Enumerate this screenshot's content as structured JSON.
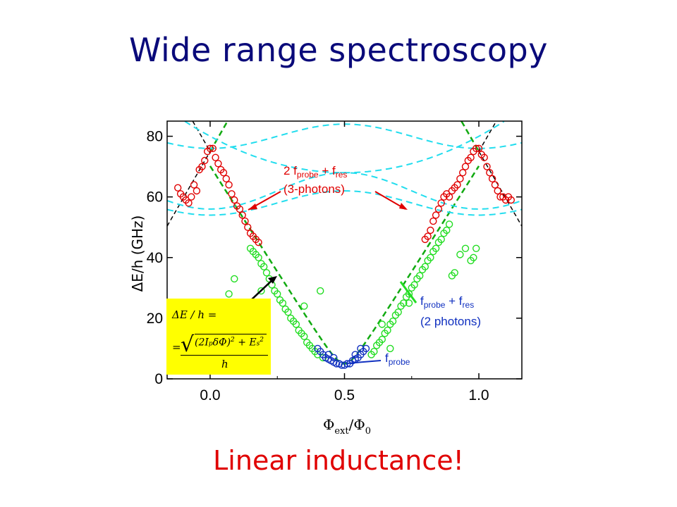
{
  "slide": {
    "title": "Wide range spectroscopy",
    "bottom_note": "Linear inductance!"
  },
  "colors": {
    "title": "#0a0a7a",
    "note": "#e00000",
    "red_points": "#e00000",
    "green_points": "#22dd22",
    "blue_points": "#1030c0",
    "green_dashed": "#11aa11",
    "cyan_dashed": "#22ddee",
    "black_dashed": "#000000",
    "formula_bg": "#ffff00"
  },
  "chart_data": {
    "type": "scatter",
    "xlabel": "Φext/Φ0",
    "ylabel": "ΔE/h (GHz)",
    "xlim": [
      -0.16,
      1.16
    ],
    "ylim": [
      0,
      85
    ],
    "xticks": [
      "0.0",
      "0.5",
      "1.0"
    ],
    "yticks": [
      "0",
      "20",
      "40",
      "60",
      "80"
    ],
    "annotations": {
      "three_photon": {
        "line1": "2 f",
        "sub1": "probe",
        "mid": " + f",
        "sub2": "res",
        "line2": "(3-photons)"
      },
      "two_photon": {
        "line1": "f",
        "sub1": "probe",
        "mid": " + f",
        "sub2": "res",
        "line2": "(2 photons)"
      },
      "one_photon": {
        "line1": "f",
        "sub1": "probe"
      }
    },
    "formula": {
      "line1": "ΔE / h =",
      "eq": "=",
      "numerator": "(2I",
      "sub_p": "p",
      "delta_phi": "δΦ)",
      "sup2a": "2",
      "plus": " + E",
      "sub_s": "s",
      "sup2b": "2",
      "denominator": "h"
    },
    "series": [
      {
        "color_key": "red_points",
        "points": [
          [
            -0.12,
            63
          ],
          [
            -0.11,
            61
          ],
          [
            -0.1,
            60
          ],
          [
            -0.09,
            59
          ],
          [
            -0.08,
            58
          ],
          [
            -0.07,
            60
          ],
          [
            -0.06,
            64
          ],
          [
            -0.05,
            62
          ],
          [
            -0.04,
            69
          ],
          [
            -0.03,
            70
          ],
          [
            -0.02,
            72
          ],
          [
            -0.01,
            75
          ],
          [
            0.0,
            76
          ],
          [
            0.01,
            76
          ],
          [
            0.02,
            73
          ],
          [
            0.03,
            71
          ],
          [
            0.04,
            69
          ],
          [
            0.05,
            68
          ],
          [
            0.06,
            66
          ],
          [
            0.07,
            64
          ],
          [
            0.08,
            61
          ],
          [
            0.09,
            59
          ],
          [
            0.1,
            57
          ],
          [
            0.11,
            56
          ],
          [
            0.12,
            54
          ],
          [
            0.13,
            52
          ],
          [
            0.14,
            50
          ],
          [
            0.15,
            48
          ],
          [
            0.16,
            47
          ],
          [
            0.17,
            46
          ],
          [
            0.18,
            45
          ],
          [
            0.8,
            46
          ],
          [
            0.81,
            47
          ],
          [
            0.82,
            49
          ],
          [
            0.83,
            52
          ],
          [
            0.84,
            54
          ],
          [
            0.85,
            56
          ],
          [
            0.86,
            58
          ],
          [
            0.87,
            60
          ],
          [
            0.88,
            61
          ],
          [
            0.89,
            60
          ],
          [
            0.9,
            62
          ],
          [
            0.91,
            63
          ],
          [
            0.92,
            64
          ],
          [
            0.93,
            66
          ],
          [
            0.94,
            68
          ],
          [
            0.95,
            70
          ],
          [
            0.96,
            72
          ],
          [
            0.97,
            73
          ],
          [
            0.98,
            75
          ],
          [
            0.99,
            76
          ],
          [
            1.0,
            76
          ],
          [
            1.01,
            74
          ],
          [
            1.02,
            73
          ],
          [
            1.03,
            70
          ],
          [
            1.04,
            68
          ],
          [
            1.05,
            66
          ],
          [
            1.06,
            64
          ],
          [
            1.07,
            62
          ],
          [
            1.08,
            60
          ],
          [
            1.09,
            60
          ],
          [
            1.1,
            59
          ],
          [
            1.11,
            60
          ],
          [
            1.12,
            59
          ]
        ]
      },
      {
        "color_key": "green_points",
        "points": [
          [
            0.15,
            43
          ],
          [
            0.16,
            42
          ],
          [
            0.17,
            41
          ],
          [
            0.18,
            40
          ],
          [
            0.19,
            38
          ],
          [
            0.2,
            37
          ],
          [
            0.21,
            35
          ],
          [
            0.22,
            33
          ],
          [
            0.23,
            31
          ],
          [
            0.24,
            29
          ],
          [
            0.25,
            28
          ],
          [
            0.26,
            26
          ],
          [
            0.27,
            25
          ],
          [
            0.28,
            23
          ],
          [
            0.29,
            22
          ],
          [
            0.3,
            20
          ],
          [
            0.31,
            19
          ],
          [
            0.32,
            18
          ],
          [
            0.33,
            16
          ],
          [
            0.34,
            15
          ],
          [
            0.35,
            14
          ],
          [
            0.36,
            12
          ],
          [
            0.37,
            11
          ],
          [
            0.38,
            10
          ],
          [
            0.39,
            9
          ],
          [
            0.4,
            8
          ],
          [
            0.42,
            7
          ],
          [
            0.6,
            8
          ],
          [
            0.61,
            9
          ],
          [
            0.62,
            11
          ],
          [
            0.63,
            12
          ],
          [
            0.64,
            13
          ],
          [
            0.65,
            15
          ],
          [
            0.66,
            16
          ],
          [
            0.67,
            18
          ],
          [
            0.68,
            19
          ],
          [
            0.69,
            21
          ],
          [
            0.7,
            22
          ],
          [
            0.71,
            24
          ],
          [
            0.72,
            25
          ],
          [
            0.73,
            27
          ],
          [
            0.74,
            28
          ],
          [
            0.75,
            30
          ],
          [
            0.76,
            31
          ],
          [
            0.77,
            33
          ],
          [
            0.78,
            34
          ],
          [
            0.79,
            36
          ],
          [
            0.8,
            37
          ],
          [
            0.81,
            39
          ],
          [
            0.82,
            40
          ],
          [
            0.83,
            42
          ],
          [
            0.84,
            43
          ],
          [
            0.85,
            45
          ],
          [
            0.86,
            46
          ],
          [
            0.87,
            48
          ],
          [
            0.88,
            49
          ],
          [
            0.89,
            51
          ],
          [
            0.07,
            28
          ],
          [
            0.09,
            33
          ],
          [
            0.14,
            24
          ],
          [
            0.19,
            29
          ],
          [
            0.41,
            29
          ],
          [
            0.35,
            24
          ],
          [
            0.64,
            18
          ],
          [
            0.67,
            10
          ],
          [
            0.9,
            34
          ],
          [
            0.93,
            41
          ],
          [
            0.95,
            43
          ],
          [
            0.97,
            39
          ],
          [
            0.98,
            40
          ],
          [
            0.99,
            43
          ],
          [
            0.91,
            35
          ],
          [
            0.74,
            25
          ]
        ]
      },
      {
        "color_key": "blue_points",
        "points": [
          [
            0.4,
            10
          ],
          [
            0.41,
            9
          ],
          [
            0.42,
            8
          ],
          [
            0.43,
            7
          ],
          [
            0.44,
            6.5
          ],
          [
            0.45,
            6
          ],
          [
            0.46,
            5.5
          ],
          [
            0.47,
            5
          ],
          [
            0.48,
            5
          ],
          [
            0.49,
            4.5
          ],
          [
            0.5,
            4.5
          ],
          [
            0.51,
            5
          ],
          [
            0.52,
            5
          ],
          [
            0.53,
            6
          ],
          [
            0.54,
            6.5
          ],
          [
            0.55,
            7
          ],
          [
            0.56,
            8
          ],
          [
            0.57,
            9
          ],
          [
            0.58,
            10
          ],
          [
            0.44,
            8
          ],
          [
            0.46,
            7
          ],
          [
            0.54,
            8
          ],
          [
            0.56,
            10
          ]
        ]
      }
    ],
    "curves": {
      "green_dashed": "two-photon branch |x-0.5| slope",
      "cyan_dashed": "avoided-crossing branches near x=0 and x=1",
      "black_dashed": "three-photon branch"
    }
  }
}
